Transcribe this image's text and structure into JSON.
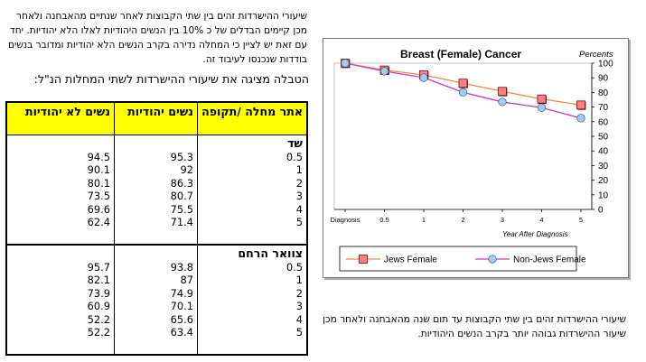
{
  "intro": "שיעורי ההישרדות זהים בין שתי הקבוצות לאחר שנתיים מהאבחנה ולאחר מכן קיימים הבדלים של כ 10% בין הנשים היהודיות לאלו הלא יהודיות. יחד עם זאת יש לציין כי המחלה נדירה בקרב הנשים הלא יהודיות ומדובר בנשים בודדות שנכנסו לעיבוד זה.",
  "table_caption": "הטבלה מציגה את שיעורי ההישרדות לשתי המחלות הנ\"ל:",
  "table": {
    "headers": {
      "site_period": "אתר מחלה /תקופה",
      "jewish": "נשים יהודיות",
      "non_jewish": "נשים לא יהודיות"
    },
    "sections": [
      {
        "name": "שד",
        "periods": [
          "0.5",
          "1",
          "2",
          "3",
          "4",
          "5"
        ],
        "jewish": [
          "95.3",
          "92",
          "86.3",
          "80.7",
          "75.5",
          "71.4"
        ],
        "non_jewish": [
          "94.5",
          "90.1",
          "80.1",
          "73.5",
          "69.6",
          "62.4"
        ]
      },
      {
        "name": "צוואר הרחם",
        "periods": [
          "0.5",
          "1",
          "2",
          "3",
          "4",
          "5"
        ],
        "jewish": [
          "93.8",
          "87",
          "74.9",
          "70.1",
          "65.6",
          "63.4"
        ],
        "non_jewish": [
          "95.7",
          "82.1",
          "73.9",
          "60.9",
          "52.2",
          "52.2"
        ]
      }
    ]
  },
  "chart_data": {
    "type": "line",
    "title": "Breast (Female)  Cancer",
    "ylabel": "Percents",
    "xlabel": "Year After Diagnosis",
    "categories": [
      "Diagnosis",
      "0.5",
      "1",
      "2",
      "3",
      "4",
      "5"
    ],
    "ylim": [
      0,
      100
    ],
    "yticks": [
      0,
      10,
      20,
      30,
      40,
      50,
      60,
      70,
      80,
      90,
      100
    ],
    "grid": false,
    "legend_position": "bottom",
    "series": [
      {
        "name": "Jews Female",
        "values": [
          100,
          95.3,
          92,
          86.3,
          80.7,
          75.5,
          71.4
        ],
        "color": "#f08a3c",
        "marker_color": "#ff8080",
        "marker_edge": "#8b0000"
      },
      {
        "name": "Non-Jews Female",
        "values": [
          100,
          94.5,
          90.1,
          80.1,
          73.5,
          69.6,
          62.4
        ],
        "color": "#cc33cc",
        "marker_color": "#99ccff",
        "marker_edge": "#404040"
      }
    ]
  },
  "bottom_text": "שיעורי ההישרדות זהים בין שתי הקבוצות עד תום שנה מהאבחנה ולאחר מכן שיעור ההישרדות גבוהה יותר בקרב הנשים היהודיות."
}
